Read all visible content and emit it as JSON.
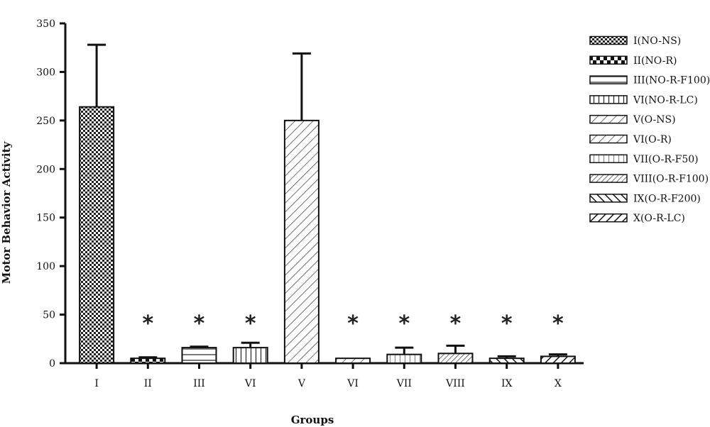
{
  "chart_data": {
    "type": "bar",
    "xlabel": "Groups",
    "ylabel": "Motor Behavior Activity",
    "ylim": [
      0,
      350
    ],
    "yticks": [
      0,
      50,
      100,
      150,
      200,
      250,
      300,
      350
    ],
    "categories": [
      "I",
      "II",
      "III",
      "VI",
      "V",
      "VI",
      "VII",
      "VIII",
      "IX",
      "X"
    ],
    "values": [
      264,
      5,
      16,
      16,
      250,
      5,
      9,
      10,
      5,
      7
    ],
    "errors": [
      64,
      1,
      1,
      5,
      69,
      0,
      7,
      8,
      2,
      2
    ],
    "significance": [
      "",
      "*",
      "*",
      "*",
      "",
      "*",
      "*",
      "*",
      "*",
      "*"
    ],
    "patterns": [
      "checker",
      "bigcheck",
      "hstripe",
      "vstripe",
      "diag",
      "diag",
      "vstripe-gray",
      "diag-dense",
      "backslash",
      "slash"
    ],
    "legend": {
      "position": "right",
      "entries": [
        "I(NO-NS)",
        "II(NO-R)",
        "III(NO-R-F100)",
        "VI(NO-R-LC)",
        "V(O-NS)",
        "VI(O-R)",
        "VII(O-R-F50)",
        "VIII(O-R-F100)",
        "IX(O-R-F200)",
        "X(O-R-LC)"
      ]
    },
    "grid": false
  }
}
